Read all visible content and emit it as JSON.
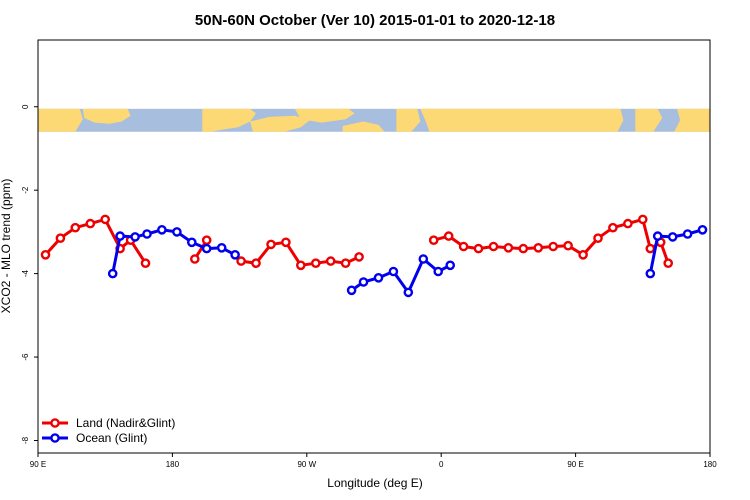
{
  "chart_data": {
    "type": "line",
    "title": "50N-60N October (Ver 10)   2015-01-01 to 2020-12-18",
    "xlabel": "Longitude (deg E)",
    "ylabel": "XCO2 - MLO trend (ppm)",
    "xlim": [
      90,
      540
    ],
    "ylim": [
      -8.3,
      1.6
    ],
    "x_ticks": [
      {
        "value": 90,
        "label": "90 E"
      },
      {
        "value": 180,
        "label": "180"
      },
      {
        "value": 270,
        "label": "90 W"
      },
      {
        "value": 360,
        "label": "0"
      },
      {
        "value": 450,
        "label": "90 E"
      },
      {
        "value": 540,
        "label": "180"
      }
    ],
    "y_ticks": [
      {
        "value": 0,
        "label": "0"
      },
      {
        "value": -2,
        "label": "-2"
      },
      {
        "value": -4,
        "label": "-4"
      },
      {
        "value": -6,
        "label": "-6"
      },
      {
        "value": -8,
        "label": "-8"
      }
    ],
    "map_band": {
      "ymin": -0.6,
      "ymax": -0.05,
      "land_color": "#fdd975",
      "ocean_color": "#a8bedf"
    },
    "legend_position": "bottom-left",
    "series": [
      {
        "name": "Land (Nadir&Glint)",
        "color": "#ee0000",
        "segments": [
          [
            [
              95,
              -3.55
            ],
            [
              105,
              -3.15
            ],
            [
              115,
              -2.9
            ],
            [
              125,
              -2.8
            ],
            [
              135,
              -2.7
            ],
            [
              145,
              -3.4
            ],
            [
              152,
              -3.2
            ],
            [
              162,
              -3.75
            ]
          ],
          [
            [
              195,
              -3.65
            ],
            [
              203,
              -3.2
            ]
          ],
          [
            [
              226,
              -3.7
            ],
            [
              236,
              -3.75
            ],
            [
              246,
              -3.3
            ],
            [
              256,
              -3.25
            ],
            [
              266,
              -3.8
            ],
            [
              276,
              -3.75
            ],
            [
              286,
              -3.7
            ],
            [
              296,
              -3.75
            ],
            [
              305,
              -3.6
            ]
          ],
          [
            [
              355,
              -3.2
            ],
            [
              365,
              -3.1
            ],
            [
              375,
              -3.35
            ],
            [
              385,
              -3.4
            ],
            [
              395,
              -3.35
            ],
            [
              405,
              -3.38
            ],
            [
              415,
              -3.4
            ],
            [
              425,
              -3.38
            ],
            [
              435,
              -3.35
            ],
            [
              445,
              -3.33
            ],
            [
              455,
              -3.55
            ],
            [
              465,
              -3.15
            ],
            [
              475,
              -2.9
            ],
            [
              485,
              -2.8
            ],
            [
              495,
              -2.7
            ],
            [
              500,
              -3.4
            ],
            [
              507,
              -3.25
            ],
            [
              512,
              -3.75
            ]
          ]
        ]
      },
      {
        "name": "Ocean (Glint)",
        "color": "#0000ee",
        "segments": [
          [
            [
              140,
              -4.0
            ],
            [
              145,
              -3.1
            ],
            [
              155,
              -3.12
            ],
            [
              163,
              -3.05
            ],
            [
              173,
              -2.95
            ],
            [
              183,
              -3.0
            ],
            [
              193,
              -3.25
            ],
            [
              203,
              -3.4
            ],
            [
              213,
              -3.38
            ],
            [
              222,
              -3.55
            ]
          ],
          [
            [
              300,
              -4.4
            ],
            [
              308,
              -4.2
            ],
            [
              318,
              -4.1
            ],
            [
              328,
              -3.95
            ],
            [
              338,
              -4.45
            ],
            [
              348,
              -3.65
            ],
            [
              358,
              -3.95
            ],
            [
              366,
              -3.8
            ]
          ],
          [
            [
              500,
              -4.0
            ],
            [
              505,
              -3.1
            ],
            [
              515,
              -3.12
            ],
            [
              525,
              -3.05
            ],
            [
              535,
              -2.95
            ]
          ]
        ]
      }
    ]
  }
}
